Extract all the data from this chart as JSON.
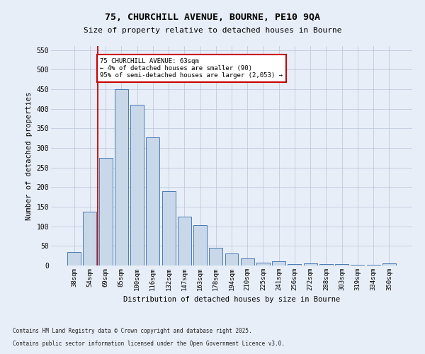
{
  "title1": "75, CHURCHILL AVENUE, BOURNE, PE10 9QA",
  "title2": "Size of property relative to detached houses in Bourne",
  "xlabel": "Distribution of detached houses by size in Bourne",
  "ylabel": "Number of detached properties",
  "categories": [
    "38sqm",
    "54sqm",
    "69sqm",
    "85sqm",
    "100sqm",
    "116sqm",
    "132sqm",
    "147sqm",
    "163sqm",
    "178sqm",
    "194sqm",
    "210sqm",
    "225sqm",
    "241sqm",
    "256sqm",
    "272sqm",
    "288sqm",
    "303sqm",
    "319sqm",
    "334sqm",
    "350sqm"
  ],
  "values": [
    35,
    137,
    275,
    450,
    410,
    327,
    190,
    125,
    103,
    45,
    30,
    18,
    8,
    10,
    4,
    5,
    4,
    3,
    2,
    2,
    6
  ],
  "bar_color": "#c8d8e8",
  "bar_edge_color": "#4a7ab5",
  "red_line_x": 1.5,
  "annotation_text": "75 CHURCHILL AVENUE: 63sqm\n← 4% of detached houses are smaller (90)\n95% of semi-detached houses are larger (2,053) →",
  "annotation_box_color": "#ffffff",
  "annotation_box_edge": "#cc0000",
  "footer1": "Contains HM Land Registry data © Crown copyright and database right 2025.",
  "footer2": "Contains public sector information licensed under the Open Government Licence v3.0.",
  "ylim": [
    0,
    560
  ],
  "yticks": [
    0,
    50,
    100,
    150,
    200,
    250,
    300,
    350,
    400,
    450,
    500,
    550
  ],
  "background_color": "#e8eef8",
  "grid_color": "#b8c4d8"
}
